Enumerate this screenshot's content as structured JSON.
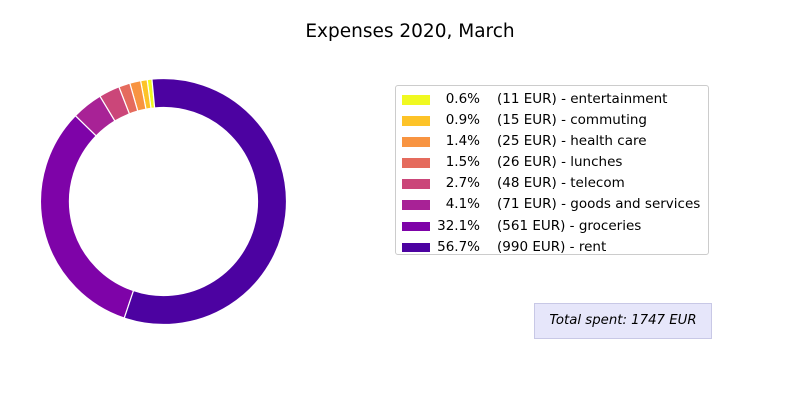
{
  "chart_data": {
    "type": "pie",
    "title": "Expenses 2020, March",
    "donut": true,
    "currency": "EUR",
    "slices": [
      {
        "label": "entertainment",
        "percent": "0.6%",
        "value": 11,
        "color": "#f0f921"
      },
      {
        "label": "commuting",
        "percent": "0.9%",
        "value": 15,
        "color": "#fdc328"
      },
      {
        "label": "health care",
        "percent": "1.4%",
        "value": 25,
        "color": "#f89441"
      },
      {
        "label": "lunches",
        "percent": "1.5%",
        "value": 26,
        "color": "#e56b5d"
      },
      {
        "label": "telecom",
        "percent": "2.7%",
        "value": 48,
        "color": "#cb4679"
      },
      {
        "label": "goods and services",
        "percent": "4.1%",
        "value": 71,
        "color": "#a82296"
      },
      {
        "label": "groceries",
        "percent": "32.1%",
        "value": 561,
        "color": "#7e03a8"
      },
      {
        "label": "rent",
        "percent": "56.7%",
        "value": 990,
        "color": "#4c02a1"
      }
    ],
    "legend_placement": "right",
    "legend_entries": [
      "(11 EUR) - entertainment",
      "(15 EUR) - commuting",
      "(25 EUR) - health care",
      "(26 EUR) - lunches",
      "(48 EUR) - telecom",
      "(71 EUR) - goods and services",
      "(561 EUR) - groceries",
      "(990 EUR) - rent"
    ],
    "annotation": "Total spent: 1747 EUR"
  }
}
